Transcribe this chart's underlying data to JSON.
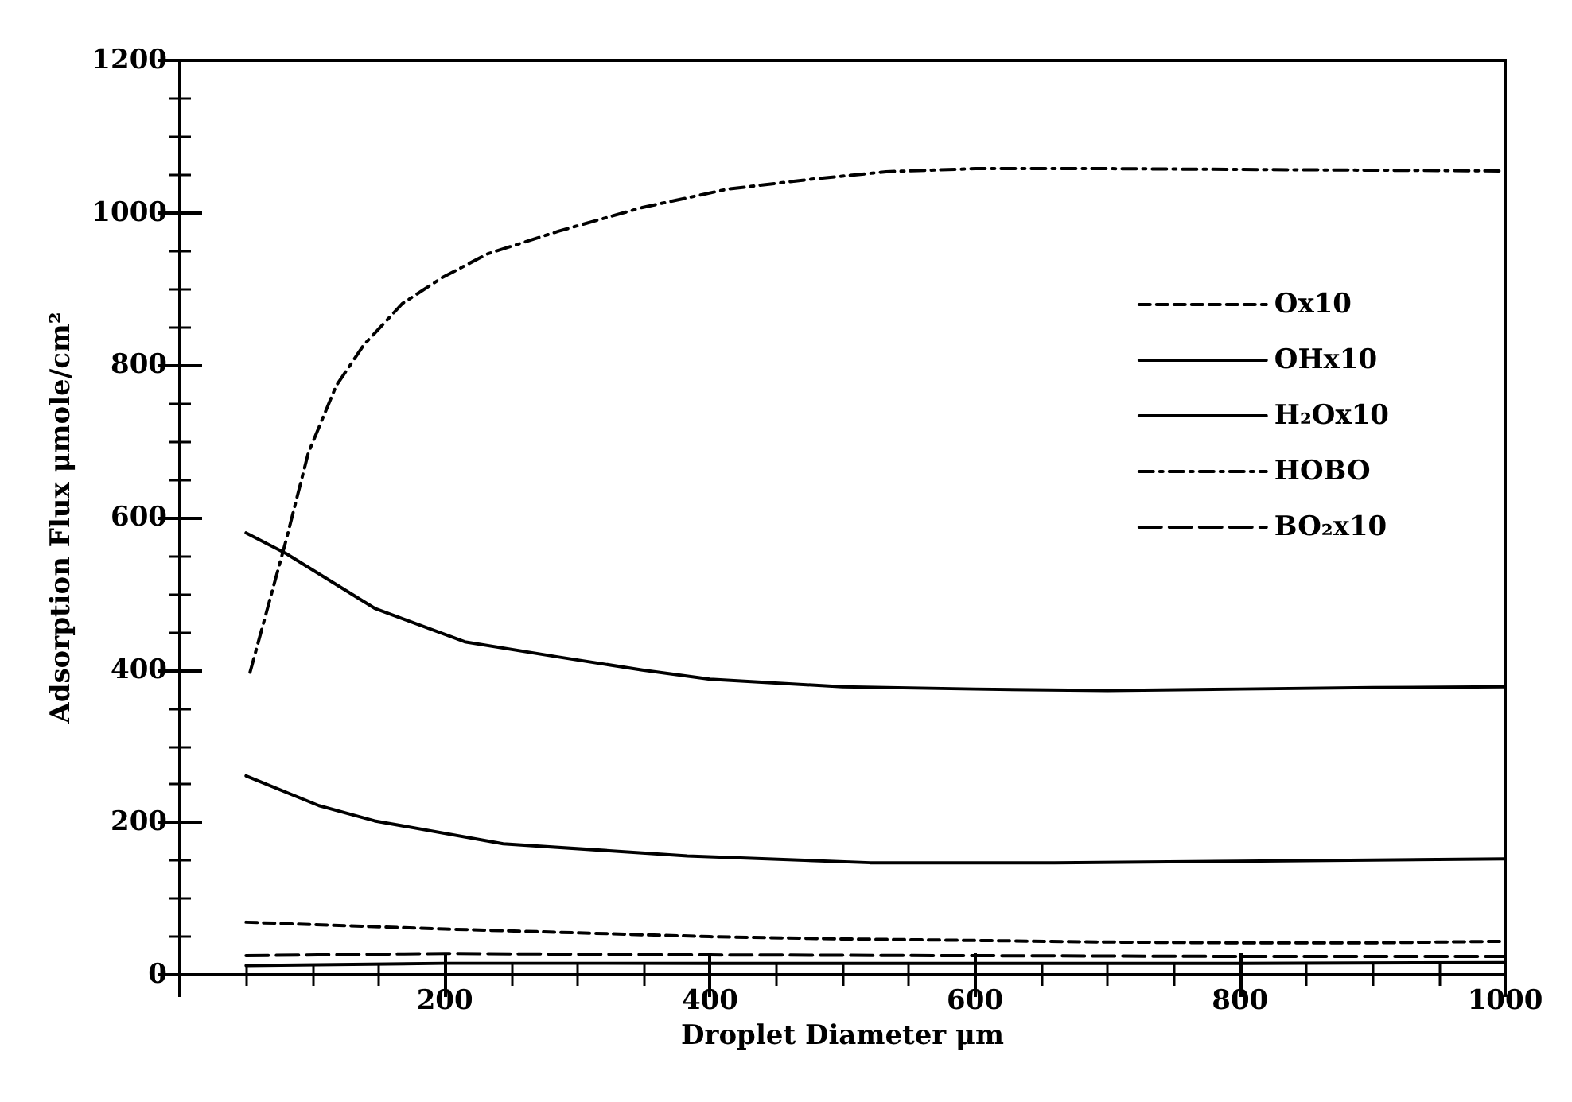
{
  "chart_data": {
    "type": "line",
    "xlabel": "Droplet Diameter μm",
    "ylabel": "Adsorption Flux μmole/cm²",
    "xlim": [
      0,
      1000
    ],
    "xticks": [
      {
        "value": 0,
        "label": null
      },
      200,
      400,
      600,
      800,
      1000
    ],
    "ylim": [
      0,
      1200
    ],
    "yticks": [
      0,
      200,
      400,
      600,
      800,
      1000,
      1200
    ],
    "grid": false,
    "legend": "right",
    "marker": "none",
    "series": [
      {
        "name": "Ox10",
        "color": "#000000",
        "line_style": "dashed",
        "x": [
          50,
          100,
          200,
          300,
          400,
          500,
          600,
          700,
          800,
          900,
          1000
        ],
        "values": [
          69,
          66,
          60,
          55,
          50,
          47,
          45,
          43,
          42,
          42,
          44
        ]
      },
      {
        "name": "OHx10",
        "color": "#000000",
        "line_style": "solid",
        "x": [
          50,
          105,
          147,
          244,
          383,
          521,
          660,
          799,
          1000
        ],
        "values": [
          261,
          222,
          202,
          172,
          156,
          147,
          147,
          149,
          152
        ]
      },
      {
        "name": "H₂Ox10",
        "color": "#000000",
        "line_style": "solid",
        "x": [
          50,
          80,
          147,
          215,
          286,
          349,
          400,
          500,
          600,
          700,
          800,
          900,
          1000
        ],
        "values": [
          580,
          553,
          481,
          437,
          417,
          400,
          388,
          378,
          375,
          373,
          375,
          377,
          378
        ]
      },
      {
        "name": "HOBO",
        "color": "#000000",
        "line_style": "dashdot",
        "x": [
          53,
          80,
          97,
          118,
          139,
          168,
          198,
          232,
          286,
          349,
          413,
          476,
          533,
          600,
          700,
          800,
          900,
          1000
        ],
        "values": [
          397,
          569,
          685,
          773,
          827,
          881,
          915,
          946,
          976,
          1007,
          1031,
          1044,
          1054,
          1058,
          1058,
          1057,
          1056,
          1055
        ]
      },
      {
        "name": "BO₂x10",
        "color": "#000000",
        "line_style": "longdash",
        "x": [
          50,
          200,
          400,
          600,
          800,
          1000
        ],
        "values": [
          25,
          28,
          26,
          25,
          24,
          24
        ]
      },
      {
        "color": "#000000",
        "line_style": "solid",
        "x": [
          50,
          200,
          400,
          600,
          800,
          1000
        ],
        "values": [
          12,
          15,
          15,
          15,
          15,
          16
        ]
      }
    ]
  }
}
